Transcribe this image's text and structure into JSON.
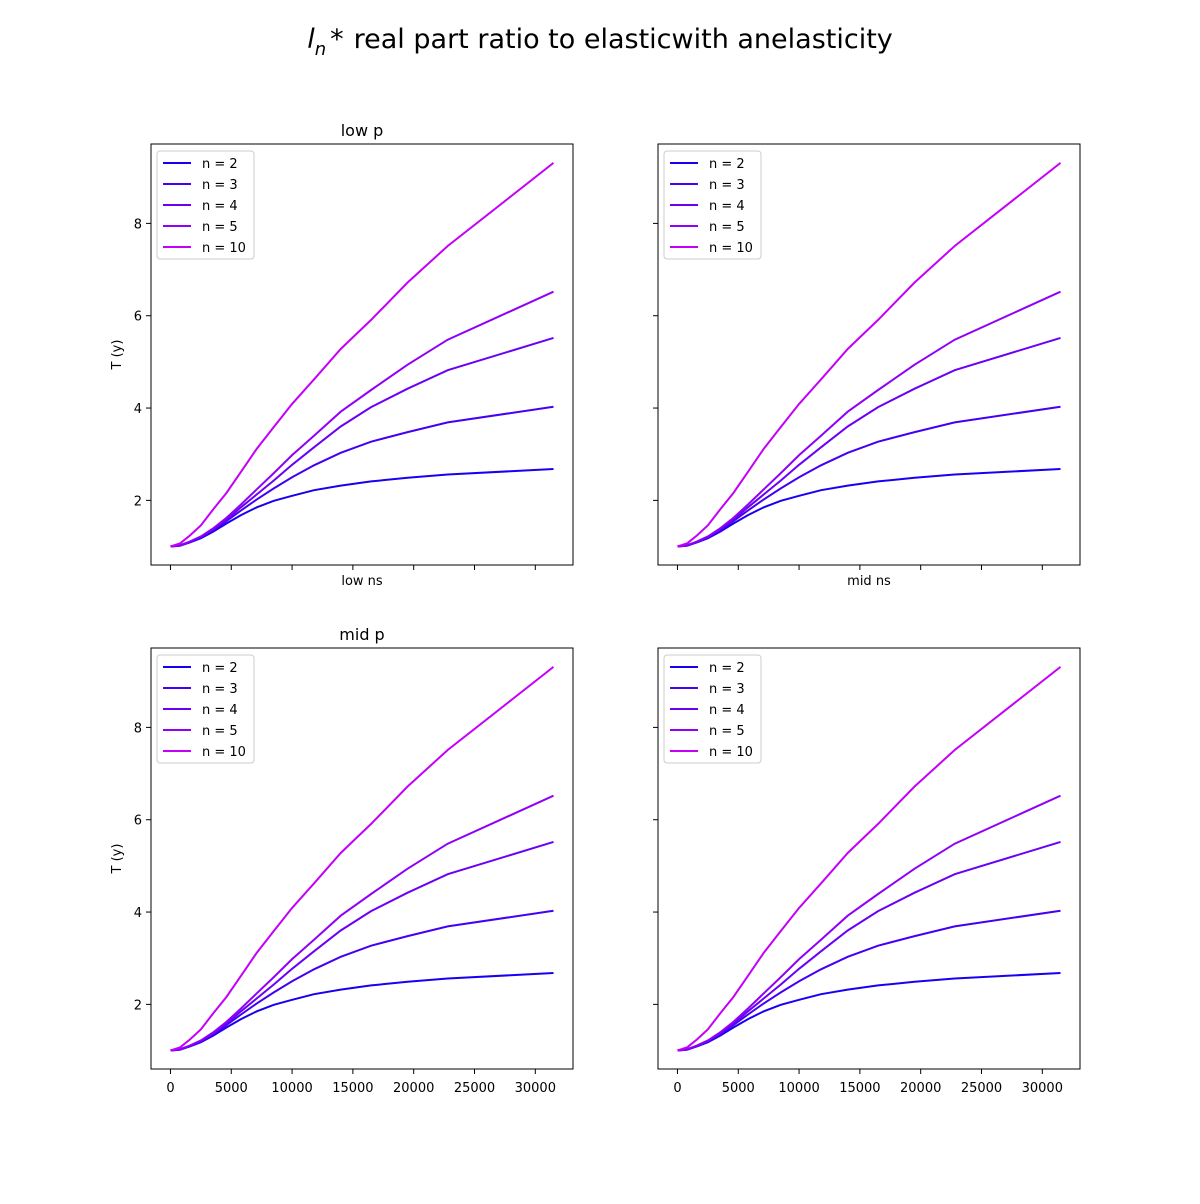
{
  "figure": {
    "title_symbol": "l",
    "title_subscript": "n",
    "title_star": "*",
    "title_text": "real part ratio to elasticwith anelasticity"
  },
  "chart_data": [
    {
      "type": "line",
      "title": "low p",
      "xlabel": "low ns",
      "ylabel": "T (y)",
      "xlim": [
        -1600,
        33100
      ],
      "ylim": [
        0.6,
        9.72
      ],
      "xticks": [
        0,
        5000,
        10000,
        15000,
        20000,
        25000,
        30000
      ],
      "yticks": [
        2,
        4,
        6,
        8
      ],
      "show_xticklabels": false,
      "show_yticklabels": true,
      "legend_position": "upper-left",
      "grid": false,
      "x": [
        0,
        800,
        1600,
        2500,
        3500,
        4600,
        5800,
        7100,
        8500,
        10000,
        11800,
        14000,
        16500,
        19500,
        22800,
        31500
      ],
      "series": [
        {
          "name": "n = 2",
          "color": "#1a00f0",
          "values": [
            1.0,
            1.02,
            1.09,
            1.18,
            1.32,
            1.5,
            1.68,
            1.85,
            1.99,
            2.1,
            2.22,
            2.32,
            2.41,
            2.49,
            2.56,
            2.68
          ]
        },
        {
          "name": "n = 3",
          "color": "#4400f2",
          "values": [
            1.0,
            1.02,
            1.1,
            1.2,
            1.35,
            1.55,
            1.78,
            2.02,
            2.26,
            2.5,
            2.76,
            3.03,
            3.27,
            3.48,
            3.69,
            4.03
          ]
        },
        {
          "name": "n = 4",
          "color": "#6a00f4",
          "values": [
            1.0,
            1.03,
            1.1,
            1.21,
            1.37,
            1.58,
            1.85,
            2.13,
            2.43,
            2.77,
            3.15,
            3.6,
            4.02,
            4.42,
            4.82,
            5.52
          ]
        },
        {
          "name": "n = 5",
          "color": "#9000f6",
          "values": [
            1.0,
            1.03,
            1.11,
            1.22,
            1.39,
            1.62,
            1.91,
            2.24,
            2.59,
            2.98,
            3.4,
            3.92,
            4.39,
            4.94,
            5.48,
            6.52
          ]
        },
        {
          "name": "n = 10",
          "color": "#c400f8",
          "values": [
            1.0,
            1.07,
            1.24,
            1.46,
            1.8,
            2.16,
            2.62,
            3.12,
            3.59,
            4.09,
            4.62,
            5.28,
            5.91,
            6.72,
            7.51,
            9.31
          ]
        }
      ]
    },
    {
      "type": "line",
      "title": "",
      "xlabel": "mid ns",
      "ylabel": "",
      "xlim": [
        -1600,
        33100
      ],
      "ylim": [
        0.6,
        9.72
      ],
      "xticks": [
        0,
        5000,
        10000,
        15000,
        20000,
        25000,
        30000
      ],
      "yticks": [
        2,
        4,
        6,
        8
      ],
      "show_xticklabels": false,
      "show_yticklabels": false,
      "legend_position": "upper-left",
      "grid": false,
      "x": [
        0,
        800,
        1600,
        2500,
        3500,
        4600,
        5800,
        7100,
        8500,
        10000,
        11800,
        14000,
        16500,
        19500,
        22800,
        31500
      ],
      "series": [
        {
          "name": "n = 2",
          "color": "#1a00f0",
          "values": [
            1.0,
            1.02,
            1.09,
            1.18,
            1.32,
            1.5,
            1.68,
            1.85,
            1.99,
            2.1,
            2.22,
            2.32,
            2.41,
            2.49,
            2.56,
            2.68
          ]
        },
        {
          "name": "n = 3",
          "color": "#4400f2",
          "values": [
            1.0,
            1.02,
            1.1,
            1.2,
            1.35,
            1.55,
            1.78,
            2.02,
            2.26,
            2.5,
            2.76,
            3.03,
            3.27,
            3.48,
            3.69,
            4.03
          ]
        },
        {
          "name": "n = 4",
          "color": "#6a00f4",
          "values": [
            1.0,
            1.03,
            1.1,
            1.21,
            1.37,
            1.58,
            1.85,
            2.13,
            2.43,
            2.77,
            3.15,
            3.6,
            4.02,
            4.42,
            4.82,
            5.52
          ]
        },
        {
          "name": "n = 5",
          "color": "#9000f6",
          "values": [
            1.0,
            1.03,
            1.11,
            1.22,
            1.39,
            1.62,
            1.91,
            2.24,
            2.59,
            2.98,
            3.4,
            3.92,
            4.39,
            4.94,
            5.48,
            6.52
          ]
        },
        {
          "name": "n = 10",
          "color": "#c400f8",
          "values": [
            1.0,
            1.07,
            1.24,
            1.46,
            1.8,
            2.16,
            2.62,
            3.12,
            3.59,
            4.09,
            4.62,
            5.28,
            5.91,
            6.72,
            7.51,
            9.31
          ]
        }
      ]
    },
    {
      "type": "line",
      "title": "mid p",
      "xlabel": "",
      "ylabel": "T (y)",
      "xlim": [
        -1600,
        33100
      ],
      "ylim": [
        0.6,
        9.72
      ],
      "xticks": [
        0,
        5000,
        10000,
        15000,
        20000,
        25000,
        30000
      ],
      "yticks": [
        2,
        4,
        6,
        8
      ],
      "show_xticklabels": true,
      "show_yticklabels": true,
      "legend_position": "upper-left",
      "grid": false,
      "x": [
        0,
        800,
        1600,
        2500,
        3500,
        4600,
        5800,
        7100,
        8500,
        10000,
        11800,
        14000,
        16500,
        19500,
        22800,
        31500
      ],
      "series": [
        {
          "name": "n = 2",
          "color": "#1a00f0",
          "values": [
            1.0,
            1.02,
            1.09,
            1.18,
            1.32,
            1.5,
            1.68,
            1.85,
            1.99,
            2.1,
            2.22,
            2.32,
            2.41,
            2.49,
            2.56,
            2.68
          ]
        },
        {
          "name": "n = 3",
          "color": "#4400f2",
          "values": [
            1.0,
            1.02,
            1.1,
            1.2,
            1.35,
            1.55,
            1.78,
            2.02,
            2.26,
            2.5,
            2.76,
            3.03,
            3.27,
            3.48,
            3.69,
            4.03
          ]
        },
        {
          "name": "n = 4",
          "color": "#6a00f4",
          "values": [
            1.0,
            1.03,
            1.1,
            1.21,
            1.37,
            1.58,
            1.85,
            2.13,
            2.43,
            2.77,
            3.15,
            3.6,
            4.02,
            4.42,
            4.82,
            5.52
          ]
        },
        {
          "name": "n = 5",
          "color": "#9000f6",
          "values": [
            1.0,
            1.03,
            1.11,
            1.22,
            1.39,
            1.62,
            1.91,
            2.24,
            2.59,
            2.98,
            3.4,
            3.92,
            4.39,
            4.94,
            5.48,
            6.52
          ]
        },
        {
          "name": "n = 10",
          "color": "#c400f8",
          "values": [
            1.0,
            1.07,
            1.24,
            1.46,
            1.8,
            2.16,
            2.62,
            3.12,
            3.59,
            4.09,
            4.62,
            5.28,
            5.91,
            6.72,
            7.51,
            9.31
          ]
        }
      ]
    },
    {
      "type": "line",
      "title": "",
      "xlabel": "",
      "ylabel": "",
      "xlim": [
        -1600,
        33100
      ],
      "ylim": [
        0.6,
        9.72
      ],
      "xticks": [
        0,
        5000,
        10000,
        15000,
        20000,
        25000,
        30000
      ],
      "yticks": [
        2,
        4,
        6,
        8
      ],
      "show_xticklabels": true,
      "show_yticklabels": false,
      "legend_position": "upper-left",
      "grid": false,
      "x": [
        0,
        800,
        1600,
        2500,
        3500,
        4600,
        5800,
        7100,
        8500,
        10000,
        11800,
        14000,
        16500,
        19500,
        22800,
        31500
      ],
      "series": [
        {
          "name": "n = 2",
          "color": "#1a00f0",
          "values": [
            1.0,
            1.02,
            1.09,
            1.18,
            1.32,
            1.5,
            1.68,
            1.85,
            1.99,
            2.1,
            2.22,
            2.32,
            2.41,
            2.49,
            2.56,
            2.68
          ]
        },
        {
          "name": "n = 3",
          "color": "#4400f2",
          "values": [
            1.0,
            1.02,
            1.1,
            1.2,
            1.35,
            1.55,
            1.78,
            2.02,
            2.26,
            2.5,
            2.76,
            3.03,
            3.27,
            3.48,
            3.69,
            4.03
          ]
        },
        {
          "name": "n = 4",
          "color": "#6a00f4",
          "values": [
            1.0,
            1.03,
            1.1,
            1.21,
            1.37,
            1.58,
            1.85,
            2.13,
            2.43,
            2.77,
            3.15,
            3.6,
            4.02,
            4.42,
            4.82,
            5.52
          ]
        },
        {
          "name": "n = 5",
          "color": "#9000f6",
          "values": [
            1.0,
            1.03,
            1.11,
            1.22,
            1.39,
            1.62,
            1.91,
            2.24,
            2.59,
            2.98,
            3.4,
            3.92,
            4.39,
            4.94,
            5.48,
            6.52
          ]
        },
        {
          "name": "n = 10",
          "color": "#c400f8",
          "values": [
            1.0,
            1.07,
            1.24,
            1.46,
            1.8,
            2.16,
            2.62,
            3.12,
            3.59,
            4.09,
            4.62,
            5.28,
            5.91,
            6.72,
            7.51,
            9.31
          ]
        }
      ]
    }
  ]
}
